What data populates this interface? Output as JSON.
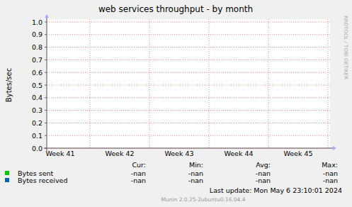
{
  "chart_data": {
    "type": "line",
    "title": "web services throughput - by month",
    "y_label": "Bytes/sec",
    "categories": [
      "Week 41",
      "Week 42",
      "Week 43",
      "Week 44",
      "Week 45"
    ],
    "series": [
      {
        "name": "Bytes sent",
        "color": "#00cc00",
        "values": [
          null,
          null,
          null,
          null,
          null
        ],
        "stats": [
          "-nan",
          "-nan",
          "-nan",
          "-nan"
        ]
      },
      {
        "name": "Bytes received",
        "color": "#0066b3",
        "values": [
          null,
          null,
          null,
          null,
          null
        ],
        "stats": [
          "-nan",
          "-nan",
          "-nan",
          "-nan"
        ]
      }
    ],
    "legend_columns": [
      "Cur:",
      "Min:",
      "Avg:",
      "Max:"
    ],
    "ylim": [
      0,
      1
    ],
    "yticks": [
      {
        "value": 0,
        "label": "0.0"
      },
      0.1,
      0.2,
      0.3,
      0.4,
      0.5,
      0.6,
      0.7,
      0.8,
      0.9,
      {
        "value": 1,
        "label": "1.0"
      }
    ],
    "grid": true,
    "legend": "bottom",
    "last_update": "Last update:  Mon May  6 23:10:01 2024",
    "footer": "Munin 2.0.25-2ubuntu0.16.04.4",
    "side_text": "RRDTOOL / TOBI OETIKER"
  }
}
